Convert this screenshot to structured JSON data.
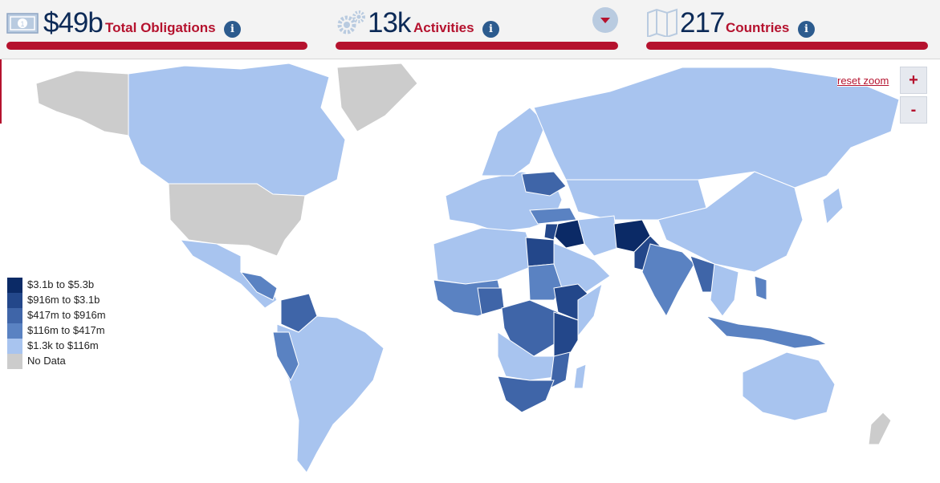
{
  "stats": [
    {
      "value": "$49b",
      "label": "Total Obligations",
      "icon": "money-icon"
    },
    {
      "value": "13k",
      "label": "Activities",
      "icon": "gears-icon"
    },
    {
      "value": "217",
      "label": "Countries",
      "icon": "map-icon"
    }
  ],
  "info_glyph": "i",
  "map": {
    "reset_label": "reset zoom",
    "zoom_in_label": "+",
    "zoom_out_label": "-"
  },
  "legend": [
    {
      "label": "$3.1b to $5.3b",
      "color": "#0b2a66"
    },
    {
      "label": "$916m to $3.1b",
      "color": "#23478a"
    },
    {
      "label": "$417m to $916m",
      "color": "#3f65a8"
    },
    {
      "label": "$116m to $417m",
      "color": "#5a82c2"
    },
    {
      "label": "$1.3k to $116m",
      "color": "#a8c4ef"
    },
    {
      "label": "No Data",
      "color": "#cccccc"
    }
  ],
  "colors": {
    "accent": "#b5122e",
    "navy": "#0c2a57",
    "ocean": "#ffffff"
  }
}
